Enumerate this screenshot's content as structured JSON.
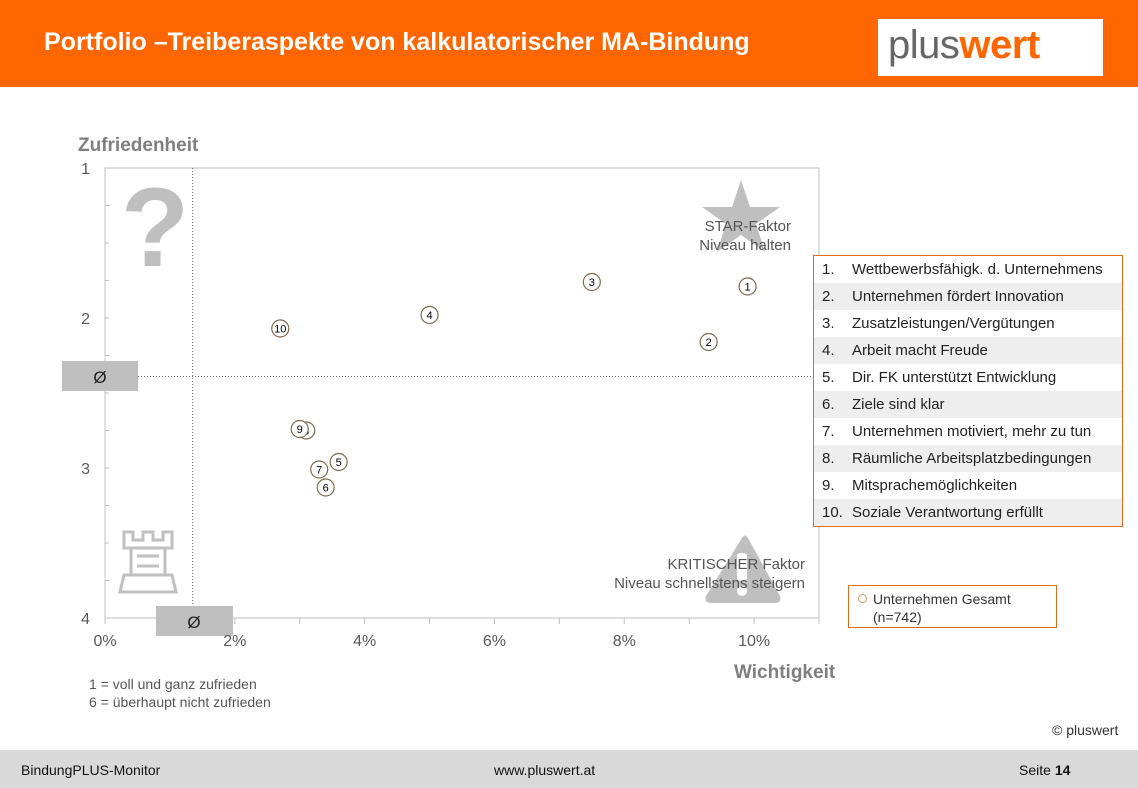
{
  "header": {
    "title": "Portfolio –Treiberaspekte von kalkulatorischer MA-Bindung"
  },
  "logo": {
    "plus": "plus",
    "wert": "wert"
  },
  "chart_data": {
    "type": "scatter",
    "xlabel": "Wichtigkeit",
    "ylabel": "Zufriedenheit",
    "xlim": [
      0,
      11
    ],
    "ylim": [
      1,
      4
    ],
    "y_inverted": true,
    "x_ticks": [
      "0%",
      "2%",
      "4%",
      "6%",
      "8%",
      "10%"
    ],
    "x_tick_values": [
      0,
      2,
      4,
      6,
      8,
      10
    ],
    "y_ticks": [
      "1",
      "2",
      "3",
      "4"
    ],
    "y_tick_values": [
      1,
      2,
      3,
      4
    ],
    "avg_x": 1.35,
    "avg_y": 2.39,
    "avg_symbol": "Ø",
    "series_name": "Unternehmen Gesamt",
    "series_n": "(n=742)",
    "points": [
      {
        "id": "1",
        "x": 9.9,
        "y": 1.79
      },
      {
        "id": "2",
        "x": 9.3,
        "y": 2.16
      },
      {
        "id": "3",
        "x": 7.5,
        "y": 1.76
      },
      {
        "id": "4",
        "x": 5.0,
        "y": 1.98
      },
      {
        "id": "5",
        "x": 3.6,
        "y": 2.96
      },
      {
        "id": "6",
        "x": 3.4,
        "y": 3.13
      },
      {
        "id": "7",
        "x": 3.3,
        "y": 3.01
      },
      {
        "id": "8",
        "x": 3.1,
        "y": 2.75
      },
      {
        "id": "9",
        "x": 3.0,
        "y": 2.74
      },
      {
        "id": "10",
        "x": 2.7,
        "y": 2.07
      }
    ],
    "quadrants": {
      "star_line1": "STAR-Faktor",
      "star_line2": "Niveau halten",
      "critical_line1": "KRITISCHER Faktor",
      "critical_line2": "Niveau schnellstens steigern"
    },
    "colors": {
      "accent": "#ff6600",
      "legend_border": "#e26b1f",
      "marker": "#c8a060",
      "icon_gray": "#bfbfbf"
    }
  },
  "legend": {
    "items": [
      {
        "num": "1.",
        "label": "Wettbewerbsfähigk. d. Unternehmens"
      },
      {
        "num": "2.",
        "label": "Unternehmen fördert Innovation"
      },
      {
        "num": "3.",
        "label": "Zusatzleistungen/Vergütungen"
      },
      {
        "num": "4.",
        "label": "Arbeit macht Freude"
      },
      {
        "num": "5.",
        "label": "Dir. FK unterstützt Entwicklung"
      },
      {
        "num": "6.",
        "label": "Ziele sind klar"
      },
      {
        "num": "7.",
        "label": "Unternehmen motiviert, mehr zu tun"
      },
      {
        "num": "8.",
        "label": "Räumliche Arbeitsplatzbedingungen"
      },
      {
        "num": "9.",
        "label": "Mitsprachemöglichkeiten"
      },
      {
        "num": "10.",
        "label": "Soziale Verantwortung erfüllt"
      }
    ]
  },
  "footnotes": {
    "line1": "1 = voll und ganz zufrieden",
    "line2": "6 = überhaupt nicht zufrieden"
  },
  "copyright": "© pluswert",
  "footer": {
    "left": "BindungPLUS-Monitor",
    "mid": "www.pluswert.at",
    "page_label": "Seite",
    "page_number": "14"
  }
}
